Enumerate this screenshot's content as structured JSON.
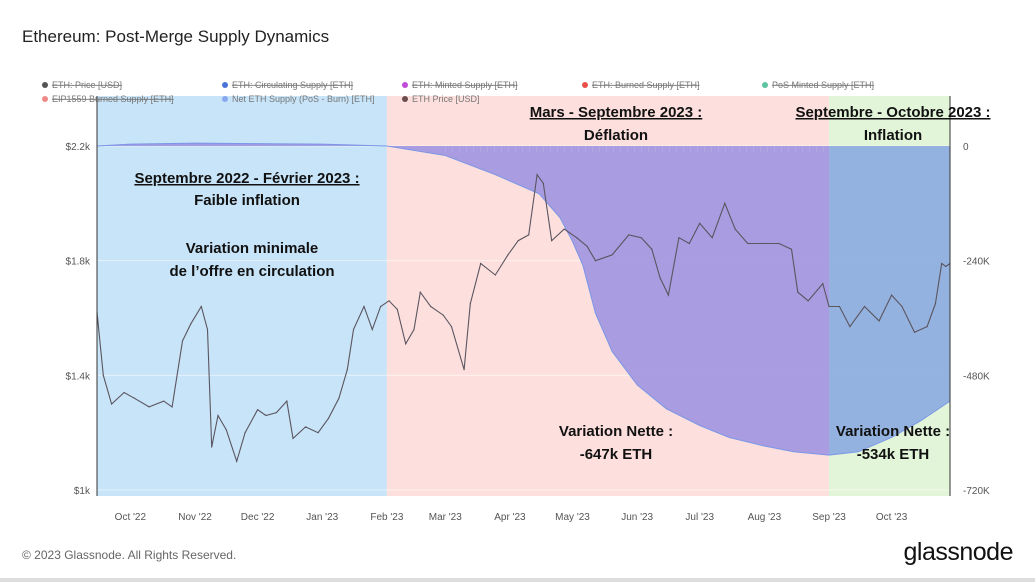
{
  "title": "Ethereum: Post-Merge Supply Dynamics",
  "footer": "© 2023 Glassnode. All Rights Reserved.",
  "logo": "glassnode",
  "chart_data": {
    "type": "line",
    "title": "Ethereum: Post-Merge Supply Dynamics",
    "legend": [
      {
        "name": "ETH: Price [USD]",
        "color": "#555555",
        "visible": false
      },
      {
        "name": "ETH: Circulating Supply [ETH]",
        "color": "#4a72d9",
        "visible": false
      },
      {
        "name": "ETH: Minted Supply [ETH]",
        "color": "#c04cd9",
        "visible": false
      },
      {
        "name": "ETH: Burned Supply [ETH]",
        "color": "#e8504a",
        "visible": false
      },
      {
        "name": "PoS Minted Supply [ETH]",
        "color": "#5cc4a0",
        "visible": false
      },
      {
        "name": "EIP1559 Burned Supply [ETH]",
        "color": "#f08a8a",
        "visible": false
      },
      {
        "name": "Net ETH Supply (PoS - Burn) [ETH]",
        "color": "#8aa8f0",
        "visible": true
      },
      {
        "name": "ETH Price [USD]",
        "color": "#6b4f4f",
        "visible": true
      }
    ],
    "legend_placement": "top",
    "x_range": [
      "2022-09-15",
      "2023-10-29"
    ],
    "x_ticks": [
      "Oct '22",
      "Nov '22",
      "Dec '22",
      "Jan '23",
      "Feb '23",
      "Mar '23",
      "Apr '23",
      "May '23",
      "Jun '23",
      "Jul '23",
      "Aug '23",
      "Sep '23",
      "Oct '23"
    ],
    "x_tick_dates": [
      "2022-10-01",
      "2022-11-01",
      "2022-12-01",
      "2023-01-01",
      "2023-02-01",
      "2023-03-01",
      "2023-04-01",
      "2023-05-01",
      "2023-06-01",
      "2023-07-01",
      "2023-08-01",
      "2023-09-01",
      "2023-10-01"
    ],
    "y_left": {
      "ticks": [
        "$1k",
        "$1.4k",
        "$1.8k",
        "$2.2k"
      ],
      "values": [
        1000,
        1400,
        1800,
        2200
      ],
      "range": [
        1000,
        2200
      ],
      "unit": "USD"
    },
    "y_right": {
      "ticks": [
        "-720K",
        "-480K",
        "-240K",
        "0"
      ],
      "values": [
        -720000,
        -480000,
        -240000,
        0
      ],
      "range": [
        -720000,
        0
      ],
      "unit": "ETH"
    },
    "periods": [
      {
        "start": "2022-09-15",
        "end": "2023-02-01",
        "color": "#c8e4f8",
        "title": [
          "Septembre 2022 - Février 2023 :",
          "Faible inflation"
        ],
        "note": [
          "Variation minimale",
          "de l’offre en circulation"
        ]
      },
      {
        "start": "2023-02-01",
        "end": "2023-09-01",
        "color": "#fde0de",
        "title": [
          "Mars - Septembre 2023 :",
          "Déflation"
        ],
        "note": [
          "Variation Nette :",
          "-647k ETH"
        ]
      },
      {
        "start": "2023-09-01",
        "end": "2023-10-29",
        "color": "#e2f5d8",
        "title": [
          "Septembre - Octobre 2023 :",
          "Inflation"
        ],
        "note": [
          "Variation Nette :",
          "-534k ETH"
        ]
      }
    ],
    "series": [
      {
        "name": "ETH Price [USD]",
        "axis": "left",
        "color": "#5a5a5a",
        "points": [
          [
            "2022-09-15",
            1620
          ],
          [
            "2022-09-18",
            1400
          ],
          [
            "2022-09-22",
            1300
          ],
          [
            "2022-09-28",
            1340
          ],
          [
            "2022-10-03",
            1320
          ],
          [
            "2022-10-10",
            1290
          ],
          [
            "2022-10-17",
            1310
          ],
          [
            "2022-10-21",
            1290
          ],
          [
            "2022-10-26",
            1520
          ],
          [
            "2022-10-30",
            1580
          ],
          [
            "2022-11-04",
            1640
          ],
          [
            "2022-11-07",
            1560
          ],
          [
            "2022-11-09",
            1150
          ],
          [
            "2022-11-12",
            1260
          ],
          [
            "2022-11-16",
            1210
          ],
          [
            "2022-11-21",
            1100
          ],
          [
            "2022-11-25",
            1200
          ],
          [
            "2022-12-01",
            1280
          ],
          [
            "2022-12-05",
            1260
          ],
          [
            "2022-12-10",
            1270
          ],
          [
            "2022-12-15",
            1310
          ],
          [
            "2022-12-18",
            1180
          ],
          [
            "2022-12-24",
            1220
          ],
          [
            "2022-12-30",
            1200
          ],
          [
            "2023-01-04",
            1250
          ],
          [
            "2023-01-09",
            1320
          ],
          [
            "2023-01-13",
            1420
          ],
          [
            "2023-01-16",
            1560
          ],
          [
            "2023-01-21",
            1640
          ],
          [
            "2023-01-25",
            1560
          ],
          [
            "2023-01-29",
            1640
          ],
          [
            "2023-02-02",
            1660
          ],
          [
            "2023-02-06",
            1630
          ],
          [
            "2023-02-10",
            1510
          ],
          [
            "2023-02-14",
            1560
          ],
          [
            "2023-02-17",
            1690
          ],
          [
            "2023-02-22",
            1640
          ],
          [
            "2023-02-28",
            1610
          ],
          [
            "2023-03-04",
            1570
          ],
          [
            "2023-03-10",
            1420
          ],
          [
            "2023-03-13",
            1650
          ],
          [
            "2023-03-18",
            1790
          ],
          [
            "2023-03-25",
            1750
          ],
          [
            "2023-03-31",
            1820
          ],
          [
            "2023-04-05",
            1870
          ],
          [
            "2023-04-10",
            1890
          ],
          [
            "2023-04-14",
            2100
          ],
          [
            "2023-04-17",
            2070
          ],
          [
            "2023-04-21",
            1870
          ],
          [
            "2023-04-27",
            1910
          ],
          [
            "2023-05-03",
            1880
          ],
          [
            "2023-05-08",
            1850
          ],
          [
            "2023-05-12",
            1800
          ],
          [
            "2023-05-20",
            1820
          ],
          [
            "2023-05-28",
            1890
          ],
          [
            "2023-06-03",
            1880
          ],
          [
            "2023-06-08",
            1840
          ],
          [
            "2023-06-12",
            1740
          ],
          [
            "2023-06-16",
            1680
          ],
          [
            "2023-06-21",
            1880
          ],
          [
            "2023-06-26",
            1860
          ],
          [
            "2023-07-01",
            1930
          ],
          [
            "2023-07-07",
            1880
          ],
          [
            "2023-07-13",
            2000
          ],
          [
            "2023-07-18",
            1910
          ],
          [
            "2023-07-24",
            1860
          ],
          [
            "2023-08-01",
            1860
          ],
          [
            "2023-08-08",
            1860
          ],
          [
            "2023-08-14",
            1840
          ],
          [
            "2023-08-17",
            1690
          ],
          [
            "2023-08-22",
            1660
          ],
          [
            "2023-08-29",
            1720
          ],
          [
            "2023-09-01",
            1640
          ],
          [
            "2023-09-06",
            1640
          ],
          [
            "2023-09-11",
            1570
          ],
          [
            "2023-09-18",
            1640
          ],
          [
            "2023-09-25",
            1590
          ],
          [
            "2023-10-01",
            1680
          ],
          [
            "2023-10-06",
            1640
          ],
          [
            "2023-10-12",
            1550
          ],
          [
            "2023-10-18",
            1570
          ],
          [
            "2023-10-22",
            1650
          ],
          [
            "2023-10-25",
            1790
          ],
          [
            "2023-10-27",
            1780
          ],
          [
            "2023-10-29",
            1790
          ]
        ]
      },
      {
        "name": "Net ETH Supply (PoS - Burn) [ETH]",
        "axis": "right",
        "color": "#9a8fe0",
        "points": [
          [
            "2022-09-15",
            0
          ],
          [
            "2022-10-01",
            4000
          ],
          [
            "2022-11-01",
            6000
          ],
          [
            "2022-12-01",
            5000
          ],
          [
            "2023-01-01",
            4000
          ],
          [
            "2023-02-01",
            0
          ],
          [
            "2023-03-01",
            -20000
          ],
          [
            "2023-03-25",
            -60000
          ],
          [
            "2023-04-15",
            -100000
          ],
          [
            "2023-04-25",
            -150000
          ],
          [
            "2023-05-01",
            -200000
          ],
          [
            "2023-05-06",
            -250000
          ],
          [
            "2023-05-12",
            -350000
          ],
          [
            "2023-05-20",
            -430000
          ],
          [
            "2023-06-01",
            -500000
          ],
          [
            "2023-06-15",
            -550000
          ],
          [
            "2023-07-01",
            -585000
          ],
          [
            "2023-07-15",
            -610000
          ],
          [
            "2023-08-01",
            -628000
          ],
          [
            "2023-08-15",
            -640000
          ],
          [
            "2023-09-01",
            -647000
          ],
          [
            "2023-09-15",
            -640000
          ],
          [
            "2023-10-01",
            -610000
          ],
          [
            "2023-10-15",
            -575000
          ],
          [
            "2023-10-29",
            -534000
          ]
        ]
      }
    ]
  }
}
